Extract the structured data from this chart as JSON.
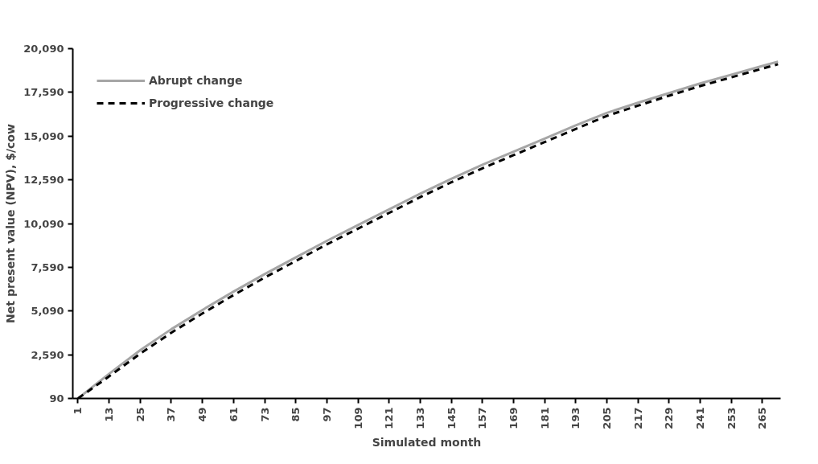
{
  "chart_data": {
    "type": "line",
    "xlabel": "Simulated month",
    "ylabel": "Net present value (NPV), $/cow",
    "x": [
      1,
      13,
      25,
      37,
      49,
      61,
      73,
      85,
      97,
      109,
      121,
      133,
      145,
      157,
      169,
      181,
      193,
      205,
      217,
      229,
      241,
      253,
      265,
      271
    ],
    "series": [
      {
        "name": "Abrupt change",
        "color": "#a6a6a6",
        "line_style": "solid",
        "values": [
          90,
          1500,
          2850,
          4050,
          5150,
          6200,
          7200,
          8150,
          9100,
          10000,
          10900,
          11800,
          12650,
          13450,
          14200,
          14950,
          15700,
          16420,
          17000,
          17550,
          18100,
          18600,
          19100,
          19350
        ]
      },
      {
        "name": "Progressive change",
        "color": "#000000",
        "line_style": "dashed",
        "values": [
          90,
          1350,
          2650,
          3850,
          4950,
          6000,
          7000,
          7950,
          8900,
          9800,
          10700,
          11600,
          12450,
          13250,
          14000,
          14750,
          15500,
          16250,
          16830,
          17400,
          17950,
          18450,
          18950,
          19200
        ]
      }
    ],
    "xlim": [
      -1,
      272
    ],
    "xticks": [
      1,
      13,
      25,
      37,
      49,
      61,
      73,
      85,
      97,
      109,
      121,
      133,
      145,
      157,
      169,
      181,
      193,
      205,
      217,
      229,
      241,
      253,
      265
    ],
    "ylim": [
      90,
      20090
    ],
    "yticks": [
      {
        "value": 90,
        "label": "90"
      },
      {
        "value": 2590,
        "label": "2,590"
      },
      {
        "value": 5090,
        "label": "5,090"
      },
      {
        "value": 7590,
        "label": "7,590"
      },
      {
        "value": 10090,
        "label": "10,090"
      },
      {
        "value": 12590,
        "label": "12,590"
      },
      {
        "value": 15090,
        "label": "15,090"
      },
      {
        "value": 17590,
        "label": "17,590"
      },
      {
        "value": 20090,
        "label": "20,090"
      }
    ],
    "grid": false,
    "legend": "top left",
    "marker": "none"
  }
}
